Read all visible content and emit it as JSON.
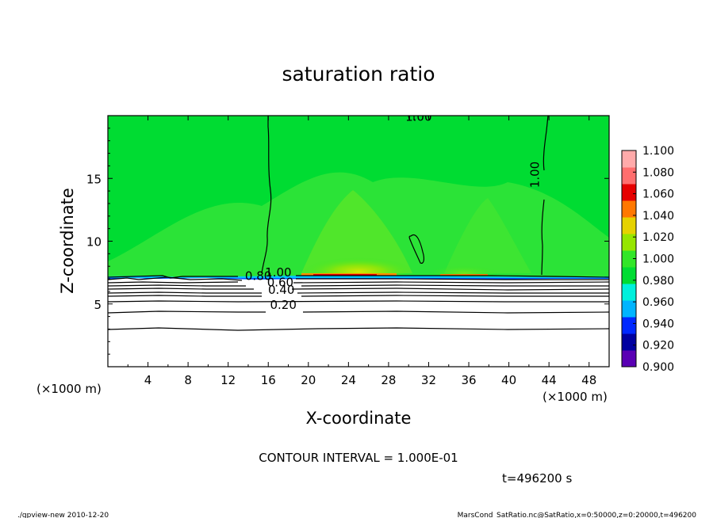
{
  "chart_data": {
    "type": "heatmap",
    "title": "saturation ratio",
    "xlabel": "X-coordinate",
    "ylabel": "Z-coordinate",
    "x_unit": "(×1000 m)",
    "y_unit": "(×1000 m)",
    "xlim": [
      0,
      50
    ],
    "ylim": [
      0,
      20
    ],
    "x_ticks": [
      4,
      8,
      12,
      16,
      20,
      24,
      28,
      32,
      36,
      40,
      44,
      48
    ],
    "y_ticks": [
      5,
      10,
      15
    ],
    "colorbar": {
      "levels": [
        0.9,
        0.92,
        0.94,
        0.96,
        0.98,
        1.0,
        1.02,
        1.04,
        1.06,
        1.08,
        1.1
      ],
      "labels": [
        "0.900",
        "0.920",
        "0.940",
        "0.960",
        "0.980",
        "1.000",
        "1.020",
        "1.040",
        "1.060",
        "1.080",
        "1.100"
      ],
      "colors": [
        "#5a00b4",
        "#0000a0",
        "#0028ff",
        "#00b4ff",
        "#00f0dc",
        "#00dc32",
        "#32e628",
        "#96e600",
        "#e6d200",
        "#ff7800",
        "#e60000",
        "#ff6e6e",
        "#ffaaaa"
      ]
    },
    "contour_labels": [
      {
        "text": "1.00",
        "x": 17.0,
        "z": 7.2
      },
      {
        "text": "0.80",
        "x": 15.0,
        "z": 6.9
      },
      {
        "text": "0.60",
        "x": 17.2,
        "z": 6.4
      },
      {
        "text": "0.40",
        "x": 17.3,
        "z": 5.8
      },
      {
        "text": "0.20",
        "x": 17.5,
        "z": 4.6
      },
      {
        "text": "1.00",
        "x": 43.0,
        "z": 15.3
      },
      {
        "text": "1.00",
        "x": 31.0,
        "z": 19.6
      }
    ],
    "contour_interval_text": "CONTOUR INTERVAL = 1.000E-01",
    "time_text": "t=496200 s"
  },
  "footer": {
    "left": "./gpview-new  2010-12-20",
    "right": "MarsCond_SatRatio.nc@SatRatio,x=0:50000,z=0:20000,t=496200"
  }
}
